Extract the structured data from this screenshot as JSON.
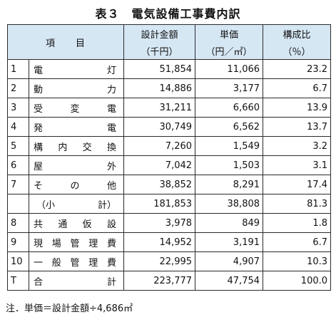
{
  "title": "表３　電気設備工事費内訳",
  "table": {
    "header": {
      "item": "項　　目",
      "cost": [
        "設計金額",
        "（千円）"
      ],
      "unit": [
        "単価",
        "（円／㎡）"
      ],
      "ratio": [
        "構成比",
        "（％）"
      ]
    },
    "rows": [
      {
        "no": "1",
        "name": [
          "電",
          "灯"
        ],
        "cost": "51,854",
        "unit": "11,066",
        "ratio": "23.2"
      },
      {
        "no": "2",
        "name": [
          "動",
          "力"
        ],
        "cost": "14,886",
        "unit": "3,177",
        "ratio": "6.7"
      },
      {
        "no": "3",
        "name": [
          "受",
          "変",
          "電"
        ],
        "cost": "31,211",
        "unit": "6,660",
        "ratio": "13.9"
      },
      {
        "no": "4",
        "name": [
          "発",
          "電"
        ],
        "cost": "30,749",
        "unit": "6,562",
        "ratio": "13.7"
      },
      {
        "no": "5",
        "name": [
          "構",
          "内",
          "交",
          "換"
        ],
        "cost": "7,260",
        "unit": "1,549",
        "ratio": "3.2"
      },
      {
        "no": "6",
        "name": [
          "屋",
          "外"
        ],
        "cost": "7,042",
        "unit": "1,503",
        "ratio": "3.1"
      },
      {
        "no": "7",
        "name": [
          "そ",
          "の",
          "他"
        ],
        "cost": "38,852",
        "unit": "8,291",
        "ratio": "17.4"
      },
      {
        "no": "",
        "name": [
          "（小",
          "計）"
        ],
        "cost": "181,853",
        "unit": "38,808",
        "ratio": "81.3"
      },
      {
        "no": "8",
        "name": [
          "共",
          "通",
          "仮",
          "設"
        ],
        "cost": "3,978",
        "unit": "849",
        "ratio": "1.8"
      },
      {
        "no": "9",
        "name": [
          "現",
          "場",
          "管",
          "理",
          "費"
        ],
        "cost": "14,952",
        "unit": "3,191",
        "ratio": "6.7"
      },
      {
        "no": "10",
        "name": [
          "一",
          "般",
          "管",
          "理",
          "費"
        ],
        "cost": "22,995",
        "unit": "4,907",
        "ratio": "10.3"
      },
      {
        "no": "T",
        "name": [
          "合",
          "計"
        ],
        "cost": "223,777",
        "unit": "47,754",
        "ratio": "100.0"
      }
    ]
  },
  "note": "注．単価＝設計金額÷4,686㎡"
}
